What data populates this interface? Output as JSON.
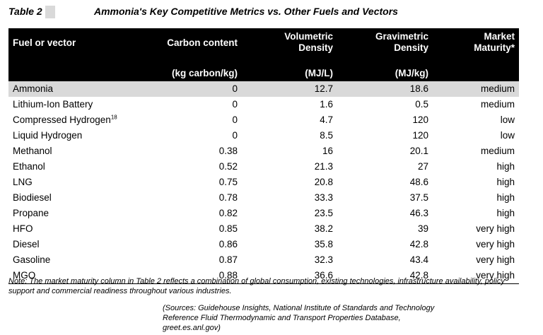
{
  "table_label": "Table 2",
  "table_title": "Ammonia's Key Competitive Metrics vs. Other Fuels and Vectors",
  "headers": {
    "fuel": "Fuel or vector",
    "carbon": "Carbon content",
    "carbon_unit": "(kg carbon/kg)",
    "vol_line1": "Volumetric",
    "vol_line2": "Density",
    "vol_unit": "(MJ/L)",
    "grav_line1": "Gravimetric",
    "grav_line2": "Density",
    "grav_unit": "(MJ/kg)",
    "market_line1": "Market",
    "market_line2": "Maturity*"
  },
  "rows": [
    {
      "name": "Ammonia",
      "sup": "",
      "carbon": "0",
      "vol": "12.7",
      "grav": "18.6",
      "maturity": "medium"
    },
    {
      "name": "Lithium-Ion Battery",
      "sup": "",
      "carbon": "0",
      "vol": "1.6",
      "grav": "0.5",
      "maturity": "medium"
    },
    {
      "name": "Compressed Hydrogen",
      "sup": "18",
      "carbon": "0",
      "vol": "4.7",
      "grav": "120",
      "maturity": "low"
    },
    {
      "name": "Liquid Hydrogen",
      "sup": "",
      "carbon": "0",
      "vol": "8.5",
      "grav": "120",
      "maturity": "low"
    },
    {
      "name": "Methanol",
      "sup": "",
      "carbon": "0.38",
      "vol": "16",
      "grav": "20.1",
      "maturity": "medium"
    },
    {
      "name": "Ethanol",
      "sup": "",
      "carbon": "0.52",
      "vol": "21.3",
      "grav": "27",
      "maturity": "high"
    },
    {
      "name": "LNG",
      "sup": "",
      "carbon": "0.75",
      "vol": "20.8",
      "grav": "48.6",
      "maturity": "high"
    },
    {
      "name": "Biodiesel",
      "sup": "",
      "carbon": "0.78",
      "vol": "33.3",
      "grav": "37.5",
      "maturity": "high"
    },
    {
      "name": "Propane",
      "sup": "",
      "carbon": "0.82",
      "vol": "23.5",
      "grav": "46.3",
      "maturity": "high"
    },
    {
      "name": "HFO",
      "sup": "",
      "carbon": "0.85",
      "vol": "38.2",
      "grav": "39",
      "maturity": "very high"
    },
    {
      "name": "Diesel",
      "sup": "",
      "carbon": "0.86",
      "vol": "35.8",
      "grav": "42.8",
      "maturity": "very high"
    },
    {
      "name": "Gasoline",
      "sup": "",
      "carbon": "0.87",
      "vol": "32.3",
      "grav": "43.4",
      "maturity": "very high"
    },
    {
      "name": "MGO",
      "sup": "",
      "carbon": "0.88",
      "vol": "36.6",
      "grav": "42.8",
      "maturity": "very high"
    }
  ],
  "note": "Note: The market maturity column in Table 2 reflects a combination of global consumption, existing technologies, infrastructure availability, policy support and commercial readiness throughout various industries.",
  "sources": "(Sources: Guidehouse Insights, National Institute of Standards and Technology Reference Fluid Thermodynamic and Transport Properties Database, greet.es.anl.gov)",
  "colors": {
    "header_bg": "#000000",
    "header_text": "#ffffff",
    "highlight_row": "#d9d9d9"
  }
}
